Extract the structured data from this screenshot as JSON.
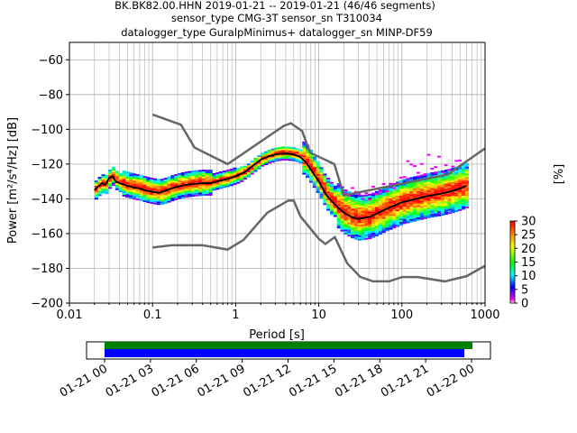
{
  "chart_data": {
    "type": "heatmap",
    "title": [
      "BK.BK82.00.HHN   2019-01-21 -- 2019-01-21  (46/46 segments)",
      "sensor_type CMG-3T sensor_sn T310034",
      "datalogger_type GuralpMinimus+ datalogger_sn MINP-DF59"
    ],
    "xlabel": "Period [s]",
    "ylabel": "Power [m²/s⁴/Hz] [dB]",
    "xscale": "log",
    "xlim": [
      0.01,
      1000
    ],
    "ylim": [
      -200,
      -50
    ],
    "xticks": [
      {
        "value": 0.01,
        "label": "0.01"
      },
      {
        "value": 0.1,
        "label": "0.1"
      },
      {
        "value": 1,
        "label": "1"
      },
      {
        "value": 10,
        "label": "10"
      },
      {
        "value": 100,
        "label": "100"
      },
      {
        "value": 1000,
        "label": "1000"
      }
    ],
    "yticks": [
      -60,
      -80,
      -100,
      -120,
      -140,
      -160,
      -180,
      -200
    ],
    "grid": true,
    "colorbar": {
      "label": "[%]",
      "min": 0,
      "max": 30,
      "ticks": [
        0,
        5,
        10,
        15,
        20,
        25,
        30
      ]
    },
    "noise_models": [
      {
        "points": [
          [
            0.1,
            -91.5
          ],
          [
            0.22,
            -97.4
          ],
          [
            0.32,
            -110.5
          ],
          [
            0.8,
            -120
          ],
          [
            3.8,
            -98
          ],
          [
            4.6,
            -96.5
          ],
          [
            6.3,
            -101
          ],
          [
            7.9,
            -113.5
          ],
          [
            15.4,
            -120
          ],
          [
            20,
            -138
          ],
          [
            354.8,
            -126
          ],
          [
            1000,
            -111
          ]
        ]
      },
      {
        "points": [
          [
            0.1,
            -168
          ],
          [
            0.17,
            -166.7
          ],
          [
            0.4,
            -166.7
          ],
          [
            0.8,
            -169.2
          ],
          [
            1.24,
            -163.7
          ],
          [
            2.4,
            -148
          ],
          [
            4.3,
            -141
          ],
          [
            5,
            -141
          ],
          [
            6,
            -150
          ],
          [
            10,
            -163
          ],
          [
            12,
            -166
          ],
          [
            15.6,
            -162
          ],
          [
            21.9,
            -177
          ],
          [
            31.6,
            -185
          ],
          [
            45,
            -187.5
          ],
          [
            70,
            -187.5
          ],
          [
            101,
            -185
          ],
          [
            154,
            -185
          ],
          [
            328,
            -187.5
          ],
          [
            600,
            -184.5
          ],
          [
            1000,
            -178.5
          ]
        ]
      }
    ],
    "mean_curve": [
      [
        0.02,
        -135
      ],
      [
        0.022,
        -133
      ],
      [
        0.025,
        -131
      ],
      [
        0.027,
        -132
      ],
      [
        0.03,
        -128
      ],
      [
        0.033,
        -127
      ],
      [
        0.036,
        -130
      ],
      [
        0.04,
        -131
      ],
      [
        0.05,
        -132.5
      ],
      [
        0.06,
        -133.5
      ],
      [
        0.07,
        -134
      ],
      [
        0.08,
        -135
      ],
      [
        0.1,
        -136
      ],
      [
        0.12,
        -136.5
      ],
      [
        0.14,
        -135.5
      ],
      [
        0.17,
        -134
      ],
      [
        0.2,
        -133
      ],
      [
        0.25,
        -132
      ],
      [
        0.3,
        -131.5
      ],
      [
        0.4,
        -131
      ],
      [
        0.5,
        -131
      ],
      [
        0.6,
        -130
      ],
      [
        0.8,
        -128.5
      ],
      [
        1,
        -127
      ],
      [
        1.3,
        -124.5
      ],
      [
        1.6,
        -121
      ],
      [
        2,
        -117.5
      ],
      [
        2.5,
        -115.5
      ],
      [
        3,
        -114.5
      ],
      [
        3.5,
        -114
      ],
      [
        4,
        -114
      ],
      [
        5,
        -114.5
      ],
      [
        6,
        -116
      ],
      [
        7,
        -119
      ],
      [
        8,
        -123
      ],
      [
        10,
        -130
      ],
      [
        12,
        -137
      ],
      [
        14,
        -141
      ],
      [
        17,
        -145
      ],
      [
        20,
        -148
      ],
      [
        25,
        -150.5
      ],
      [
        30,
        -151.5
      ],
      [
        40,
        -150.5
      ],
      [
        50,
        -148.5
      ],
      [
        60,
        -146.5
      ],
      [
        80,
        -144
      ],
      [
        100,
        -142
      ],
      [
        150,
        -140
      ],
      [
        200,
        -138.5
      ],
      [
        300,
        -137
      ],
      [
        400,
        -135.5
      ],
      [
        500,
        -134
      ],
      [
        600,
        -132.5
      ]
    ],
    "timeline": {
      "tick_labels": [
        "01-21 00",
        "01-21 03",
        "01-21 06",
        "01-21 09",
        "01-21 12",
        "01-21 15",
        "01-21 18",
        "01-21 21",
        "01-22 00"
      ],
      "bar_colors": [
        "#008000",
        "#0000ff"
      ]
    }
  }
}
